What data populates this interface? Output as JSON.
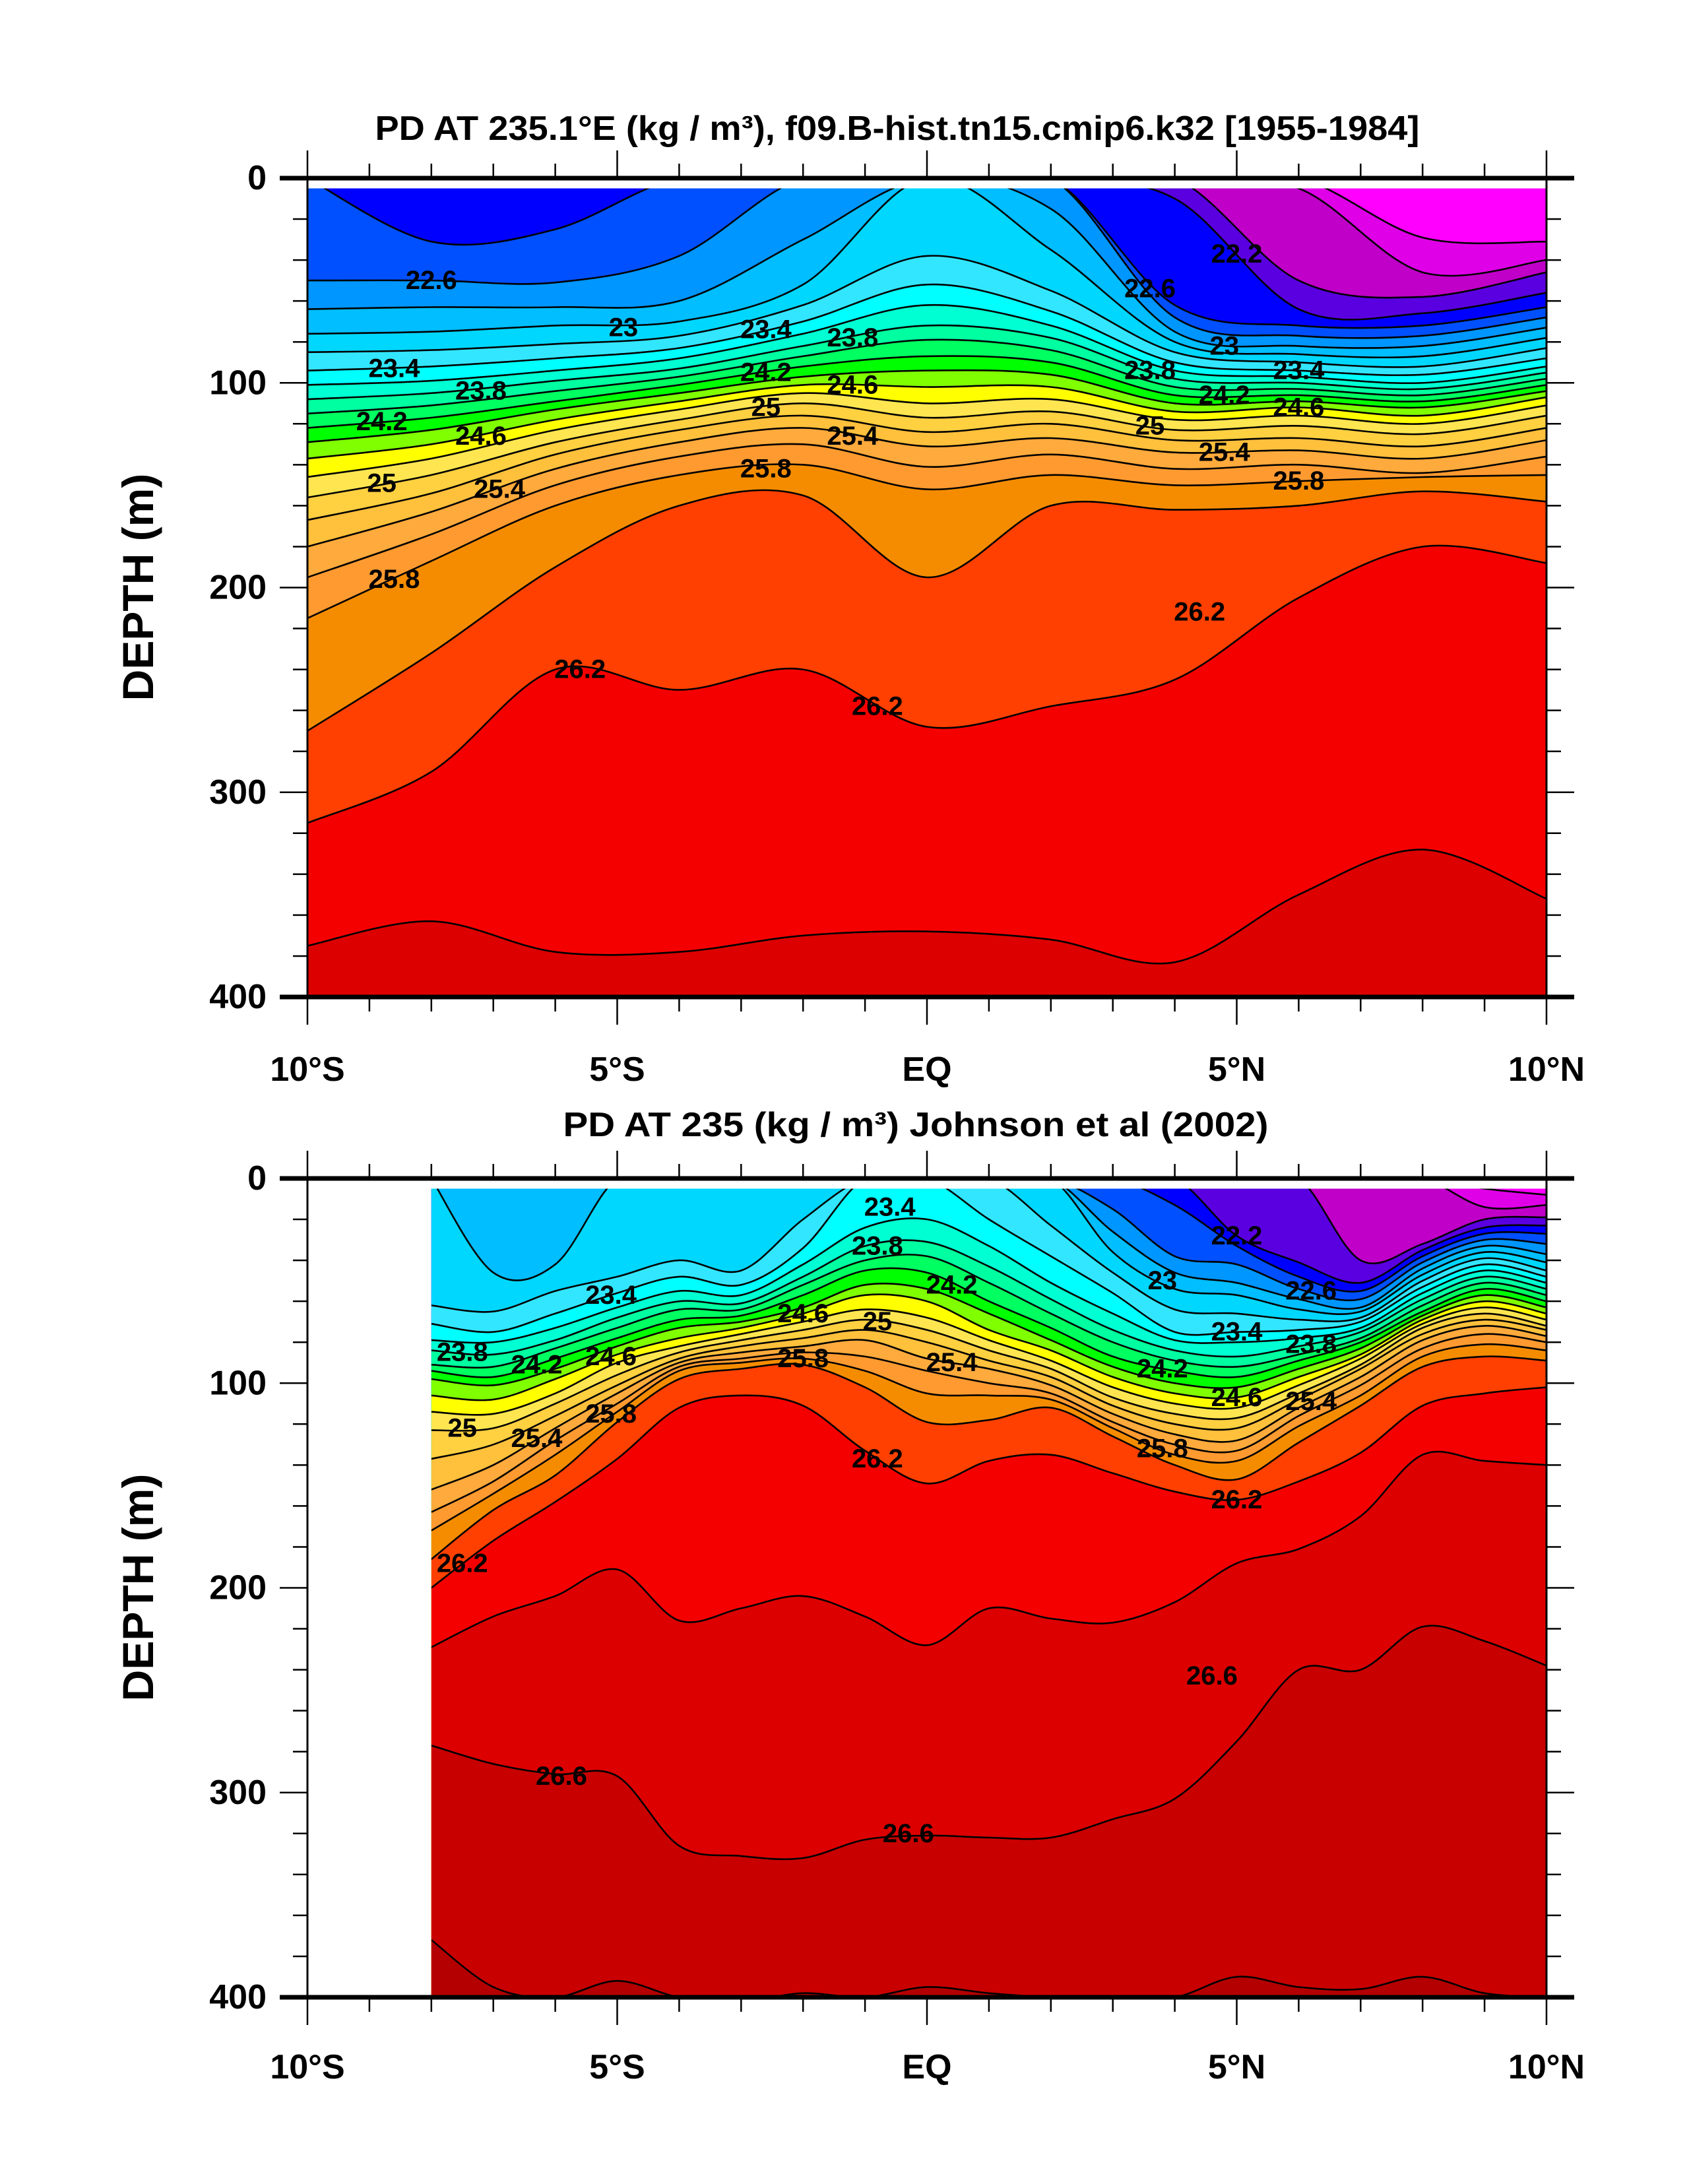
{
  "chart_data": [
    {
      "type": "contour",
      "title": "PD AT 235.1°E (kg / m³), f09.B-hist.tn15.cmip6.k32 [1955-1984]",
      "xlabel": "",
      "ylabel": "DEPTH (m)",
      "xlim": [
        -10,
        10
      ],
      "ylim": [
        400,
        0
      ],
      "data_lat_range": [
        -10,
        10
      ],
      "x_ticks": [
        -10,
        -5,
        0,
        5,
        10
      ],
      "x_tick_labels": [
        "10°S",
        "5°S",
        "EQ",
        "5°N",
        "10°N"
      ],
      "y_ticks": [
        0,
        100,
        200,
        300,
        400
      ],
      "y_tick_labels": [
        "0",
        "100",
        "200",
        "300",
        "400"
      ],
      "levels": [
        21.6,
        21.8,
        22.0,
        22.2,
        22.4,
        22.6,
        22.8,
        23.0,
        23.2,
        23.4,
        23.6,
        23.8,
        24.0,
        24.2,
        24.4,
        24.6,
        24.8,
        25.0,
        25.2,
        25.4,
        25.6,
        25.8,
        26.0,
        26.2,
        26.4,
        26.6,
        26.8
      ],
      "colors": [
        "#FF00FF",
        "#E000E8",
        "#C000C8",
        "#5A00E0",
        "#0000FF",
        "#0050FF",
        "#0096FF",
        "#00BEFF",
        "#00D7FF",
        "#33E6FF",
        "#00FFFF",
        "#00FFD2",
        "#00FFA0",
        "#00FF60",
        "#00FF00",
        "#80FF00",
        "#FFFF00",
        "#FFE650",
        "#FFD040",
        "#FFC03C",
        "#FFAA3C",
        "#FF9A30",
        "#F58C00",
        "#FF4000",
        "#F50000",
        "#DC0000",
        "#C80000",
        "#B40000"
      ],
      "latitudes": [
        -10,
        -8,
        -6,
        -4,
        -2,
        0,
        2,
        4,
        6,
        8,
        10
      ],
      "isopycnal_depths": [
        [
          0,
          0,
          0,
          0,
          0,
          0,
          0,
          0,
          0,
          29,
          31
        ],
        [
          0,
          0,
          0,
          0,
          0,
          0,
          0,
          0,
          5,
          46,
          40
        ],
        [
          0,
          0,
          0,
          0,
          0,
          0,
          0,
          0,
          50,
          58,
          46
        ],
        [
          0,
          0,
          0,
          0,
          0,
          0,
          0,
          10,
          64,
          66,
          56
        ],
        [
          0,
          31,
          25,
          0,
          0,
          0,
          0,
          62,
          72,
          72,
          63
        ],
        [
          50,
          50,
          51,
          38,
          0,
          0,
          0,
          68,
          77,
          77,
          68
        ],
        [
          64,
          63,
          63,
          60,
          30,
          0,
          15,
          75,
          82,
          82,
          73
        ],
        [
          76,
          75,
          72,
          70,
          52,
          0,
          35,
          80,
          86,
          87,
          78
        ],
        [
          85,
          84,
          81,
          77,
          62,
          38,
          55,
          85,
          90,
          92,
          83
        ],
        [
          94,
          92,
          88,
          83,
          70,
          52,
          65,
          90,
          94,
          96,
          88
        ],
        [
          101,
          99,
          94,
          88,
          76,
          62,
          72,
          94,
          97,
          100,
          92
        ],
        [
          108,
          105,
          99,
          93,
          82,
          72,
          78,
          98,
          100,
          103,
          95
        ],
        [
          115,
          111,
          104,
          97,
          87,
          79,
          84,
          102,
          103,
          106,
          98
        ],
        [
          122,
          117,
          109,
          101,
          92,
          87,
          90,
          106,
          106,
          109,
          101
        ],
        [
          129,
          123,
          113,
          105,
          97,
          94,
          96,
          110,
          109,
          112,
          104
        ],
        [
          137,
          130,
          118,
          109,
          101,
          102,
          102,
          114,
          112,
          116,
          107
        ],
        [
          146,
          137,
          123,
          113,
          105,
          110,
          108,
          118,
          116,
          120,
          111
        ],
        [
          156,
          145,
          129,
          118,
          110,
          117,
          114,
          123,
          121,
          125,
          116
        ],
        [
          167,
          154,
          135,
          123,
          116,
          124,
          120,
          128,
          127,
          131,
          122
        ],
        [
          180,
          163,
          142,
          129,
          122,
          131,
          127,
          134,
          133,
          137,
          128
        ],
        [
          195,
          174,
          150,
          136,
          130,
          141,
          135,
          142,
          140,
          144,
          136
        ],
        [
          215,
          187,
          160,
          145,
          140,
          152,
          145,
          150,
          148,
          146,
          145
        ],
        [
          270,
          232,
          190,
          160,
          155,
          195,
          160,
          162,
          160,
          153,
          158
        ],
        [
          315,
          290,
          240,
          250,
          240,
          268,
          258,
          245,
          205,
          180,
          188
        ],
        [
          375,
          363,
          378,
          378,
          370,
          368,
          372,
          383,
          350,
          328,
          352
        ],
        [
          450,
          450,
          450,
          450,
          450,
          450,
          450,
          450,
          450,
          450,
          450
        ],
        [
          450,
          450,
          450,
          450,
          450,
          450,
          450,
          450,
          450,
          450,
          450
        ]
      ],
      "contour_labels": [
        "22.6",
        "23",
        "23.4",
        "23.8",
        "24.2",
        "24.6",
        "25",
        "25.4",
        "25.8",
        "26.2",
        "23.4",
        "23.8",
        "24.2",
        "24.6",
        "25",
        "25.4",
        "25.8",
        "26.2",
        "22.2",
        "22.6",
        "23",
        "23.4",
        "23.8",
        "24.2",
        "24.6",
        "25",
        "25.4",
        "25.8",
        "26.2"
      ]
    },
    {
      "type": "contour",
      "title": "PD AT 235 (kg / m³) Johnson et al (2002)",
      "xlabel": "",
      "ylabel": "DEPTH (m)",
      "xlim": [
        -10,
        10
      ],
      "ylim": [
        400,
        0
      ],
      "data_lat_range": [
        -8,
        10
      ],
      "x_ticks": [
        -10,
        -5,
        0,
        5,
        10
      ],
      "x_tick_labels": [
        "10°S",
        "5°S",
        "EQ",
        "5°N",
        "10°N"
      ],
      "y_ticks": [
        0,
        100,
        200,
        300,
        400
      ],
      "y_tick_labels": [
        "0",
        "100",
        "200",
        "300",
        "400"
      ],
      "levels": [
        21.6,
        21.8,
        22.0,
        22.2,
        22.4,
        22.6,
        22.8,
        23.0,
        23.2,
        23.4,
        23.6,
        23.8,
        24.0,
        24.2,
        24.4,
        24.6,
        24.8,
        25.0,
        25.2,
        25.4,
        25.6,
        25.8,
        26.0,
        26.2,
        26.4,
        26.6,
        26.8
      ],
      "colors": [
        "#FF00FF",
        "#E000E8",
        "#C000C8",
        "#5A00E0",
        "#0000FF",
        "#0050FF",
        "#0096FF",
        "#00BEFF",
        "#00D7FF",
        "#33E6FF",
        "#00FFFF",
        "#00FFD2",
        "#00FFA0",
        "#00FF60",
        "#00FF00",
        "#80FF00",
        "#FFFF00",
        "#FFE650",
        "#FFD040",
        "#FFC03C",
        "#FFAA3C",
        "#FF9A30",
        "#F58C00",
        "#FF4000",
        "#F50000",
        "#DC0000",
        "#C80000",
        "#B40000"
      ],
      "latitudes": [
        -8,
        -7,
        -6,
        -5,
        -4,
        -3,
        -2,
        -1,
        0,
        1,
        2,
        3,
        4,
        5,
        6,
        7,
        8,
        9,
        10
      ],
      "isopycnal_depths": [
        [
          0,
          0,
          0,
          0,
          0,
          0,
          0,
          0,
          0,
          0,
          0,
          0,
          0,
          0,
          0,
          0,
          0,
          5,
          8
        ],
        [
          0,
          0,
          0,
          0,
          0,
          0,
          0,
          0,
          0,
          0,
          0,
          0,
          0,
          0,
          0,
          0,
          0,
          14,
          13
        ],
        [
          0,
          0,
          0,
          0,
          0,
          0,
          0,
          0,
          0,
          0,
          0,
          0,
          0,
          0,
          0,
          40,
          32,
          20,
          19
        ],
        [
          0,
          0,
          0,
          0,
          0,
          0,
          0,
          0,
          0,
          0,
          0,
          0,
          0,
          28,
          41,
          51,
          35,
          24,
          23
        ],
        [
          0,
          0,
          0,
          0,
          0,
          0,
          0,
          0,
          0,
          0,
          0,
          0,
          13,
          33,
          48,
          55,
          38,
          27,
          27
        ],
        [
          0,
          0,
          0,
          0,
          0,
          0,
          0,
          0,
          0,
          0,
          0,
          15,
          38,
          42,
          54,
          59,
          41,
          30,
          32
        ],
        [
          0,
          0,
          0,
          0,
          0,
          0,
          0,
          0,
          0,
          0,
          0,
          26,
          46,
          51,
          59,
          63,
          44,
          33,
          37
        ],
        [
          0,
          46,
          42,
          0,
          0,
          0,
          0,
          0,
          0,
          0,
          0,
          36,
          54,
          57,
          64,
          65,
          47,
          36,
          41
        ],
        [
          62,
          65,
          55,
          48,
          40,
          45,
          20,
          0,
          0,
          0,
          23,
          46,
          64,
          66,
          69,
          68,
          50,
          39,
          45
        ],
        [
          71,
          75,
          66,
          56,
          48,
          52,
          34,
          0,
          0,
          20,
          38,
          56,
          75,
          75,
          74,
          70,
          53,
          42,
          48
        ],
        [
          79,
          80,
          73,
          63,
          55,
          57,
          42,
          24,
          20,
          33,
          51,
          66,
          79,
          80,
          78,
          73,
          56,
          45,
          51
        ],
        [
          84,
          86,
          79,
          68,
          60,
          61,
          48,
          33,
          31,
          43,
          59,
          74,
          84,
          87,
          82,
          75,
          59,
          48,
          54
        ],
        [
          91,
          92,
          83,
          73,
          64,
          64,
          52,
          40,
          38,
          51,
          66,
          80,
          89,
          92,
          86,
          78,
          62,
          51,
          57
        ],
        [
          94,
          97,
          88,
          78,
          69,
          67,
          57,
          45,
          46,
          60,
          73,
          87,
          94,
          97,
          89,
          80,
          65,
          54,
          60
        ],
        [
          98,
          101,
          93,
          82,
          73,
          70,
          63,
          52,
          54,
          66,
          79,
          92,
          100,
          102,
          93,
          83,
          67,
          57,
          63
        ],
        [
          106,
          108,
          98,
          86,
          78,
          73,
          66,
          57,
          60,
          74,
          84,
          97,
          105,
          107,
          97,
          86,
          69,
          60,
          66
        ],
        [
          114,
          115,
          105,
          90,
          82,
          76,
          70,
          64,
          68,
          79,
          89,
          102,
          110,
          112,
          101,
          88,
          71,
          63,
          69
        ],
        [
          123,
          122,
          110,
          96,
          85,
          79,
          74,
          69,
          74,
          84,
          93,
          107,
          115,
          117,
          105,
          91,
          73,
          66,
          72
        ],
        [
          137,
          130,
          116,
          101,
          88,
          82,
          78,
          74,
          80,
          89,
          97,
          111,
          120,
          122,
          108,
          93,
          76,
          69,
          74
        ],
        [
          152,
          140,
          122,
          105,
          90,
          85,
          82,
          79,
          88,
          93,
          101,
          115,
          125,
          128,
          112,
          97,
          79,
          72,
          77
        ],
        [
          163,
          148,
          128,
          110,
          92,
          88,
          85,
          87,
          94,
          100,
          105,
          119,
          130,
          133,
          116,
          101,
          83,
          76,
          80
        ],
        [
          172,
          154,
          135,
          114,
          94,
          90,
          88,
          94,
          105,
          106,
          108,
          122,
          135,
          138,
          121,
          106,
          87,
          81,
          84
        ],
        [
          186,
          162,
          145,
          119,
          98,
          93,
          91,
          102,
          119,
          118,
          112,
          126,
          140,
          147,
          129,
          111,
          92,
          87,
          89
        ],
        [
          200,
          177,
          158,
          137,
          112,
          106,
          111,
          133,
          149,
          138,
          135,
          144,
          153,
          157,
          148,
          134,
          111,
          105,
          102
        ],
        [
          229,
          214,
          204,
          191,
          216,
          210,
          204,
          214,
          228,
          210,
          215,
          217,
          207,
          188,
          181,
          165,
          135,
          138,
          140
        ],
        [
          277,
          286,
          291,
          292,
          326,
          331,
          332,
          323,
          321,
          322,
          322,
          313,
          303,
          275,
          240,
          240,
          219,
          226,
          238
        ],
        [
          372,
          395,
          400,
          392,
          400,
          402,
          398,
          400,
          395,
          398,
          400,
          400,
          400,
          390,
          395,
          396,
          390,
          398,
          400
        ]
      ],
      "contour_labels": [
        "23.4",
        "23.8",
        "24.2",
        "24.6",
        "25",
        "25.4",
        "25.8",
        "26.2",
        "23.4",
        "23.8",
        "24.2",
        "24.6",
        "25",
        "25.4",
        "25.8",
        "26.2",
        "22.2",
        "22.6",
        "23",
        "23.4",
        "23.8",
        "24.2",
        "24.6",
        "25.4",
        "25.8",
        "26.2",
        "26.6",
        "26.6",
        "26.6"
      ]
    }
  ]
}
